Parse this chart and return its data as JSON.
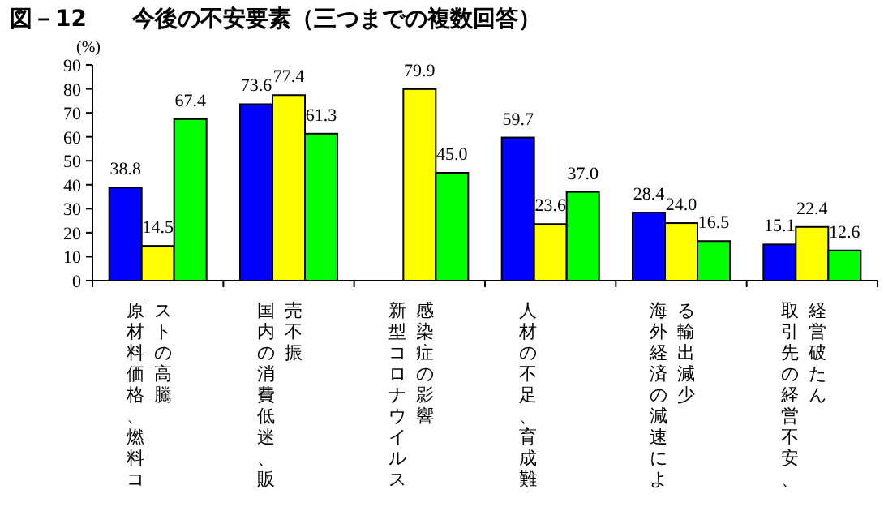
{
  "chart_data": {
    "type": "bar",
    "title": "図－12　　今後の不安要素（三つまでの複数回答）",
    "ylabel": "(%)",
    "categories": [
      "原材料価格、燃料コストの高騰",
      "国内の消費低迷、販売不振",
      "新型コロナウイルス感染症の影響",
      "人材の不足、育成難",
      "海外経済の減速による輸出減少",
      "取引先の経営不安、経営破たん"
    ],
    "series": [
      {
        "color": "#0000ff",
        "values": [
          38.8,
          73.6,
          null,
          59.7,
          28.4,
          15.1
        ],
        "value_labels": [
          "38.8",
          "73.6",
          null,
          "59.7",
          "28.4",
          "15.1"
        ]
      },
      {
        "color": "#ffff00",
        "values": [
          14.5,
          77.4,
          79.9,
          23.6,
          24.0,
          22.4
        ],
        "value_labels": [
          "14.5",
          "77.4",
          "79.9",
          "23.6",
          "24.0",
          "22.4"
        ]
      },
      {
        "color": "#00ff00",
        "values": [
          67.4,
          61.3,
          45.0,
          37.0,
          16.5,
          12.6
        ],
        "value_labels": [
          "67.4",
          "61.3",
          "45.0",
          "37.0",
          "16.5",
          "12.6"
        ]
      }
    ],
    "ylim": [
      0,
      90
    ],
    "yticks": [
      0,
      10,
      20,
      30,
      40,
      50,
      60,
      70,
      80,
      90
    ]
  }
}
